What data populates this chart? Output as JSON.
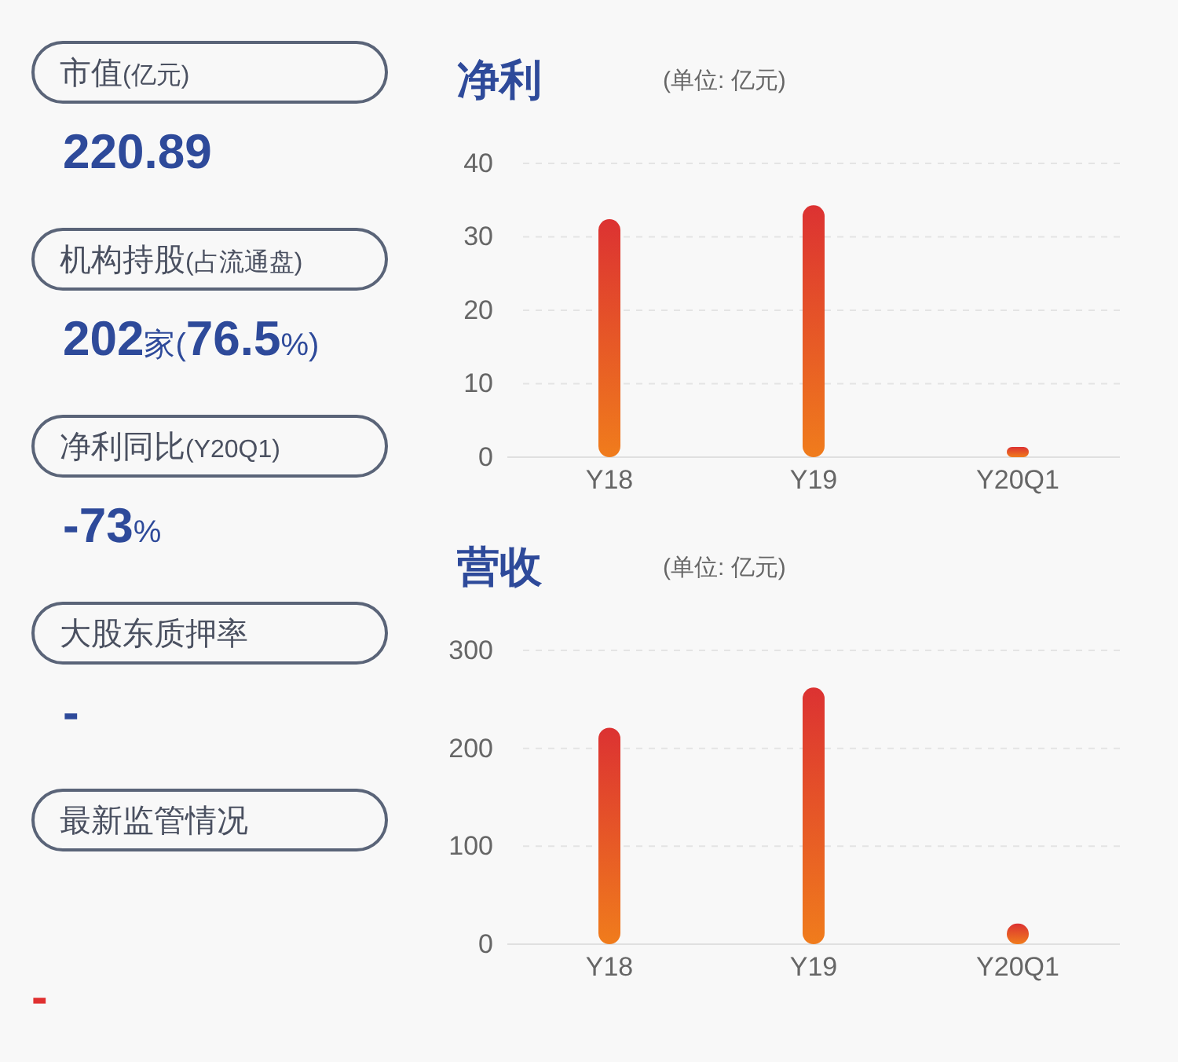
{
  "chart_data": [
    {
      "type": "other",
      "annotations": [
        "市值(亿元)",
        "220.89",
        "机构持股(占流通盘)",
        "202家(76.5%)",
        "净利同比(Y20Q1)",
        "-73%",
        "大股东质押率",
        "-",
        "最新监管情况",
        "-"
      ]
    },
    {
      "type": "bar",
      "title": "净利",
      "subtitle": "(单位: 亿元)",
      "categories": [
        "Y18",
        "Y19",
        "Y20Q1"
      ],
      "values": [
        32.4,
        34.3,
        1.4
      ],
      "color": "#dc3232",
      "ylim": [
        0,
        40
      ],
      "yticks": [
        0,
        10,
        20,
        30,
        40
      ],
      "grid": "y"
    },
    {
      "type": "bar",
      "title": "营收",
      "subtitle": "(单位: 亿元)",
      "categories": [
        "Y18",
        "Y19",
        "Y20Q1"
      ],
      "values": [
        221,
        262,
        21
      ],
      "color": "#dc3232",
      "ylim": [
        0,
        300
      ],
      "yticks": [
        0,
        100,
        200,
        300
      ],
      "grid": "y"
    }
  ]
}
